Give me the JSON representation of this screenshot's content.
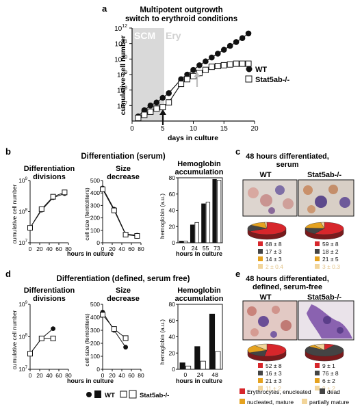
{
  "colors": {
    "black": "#111111",
    "open": "#ffffff",
    "shade": "#d9d9d9",
    "arrow_grey": "#bdbdbd",
    "pie_red": "#d7262b",
    "pie_dark": "#444444",
    "pie_orange": "#e5a21f",
    "pie_light": "#f2d59a"
  },
  "panel_a": {
    "letter": "a",
    "title1": "Multipotent outgrowth",
    "title2": "switch to erythroid conditions",
    "label_scm": "SCM",
    "label_ery": "Ery",
    "chart_data": {
      "type": "line",
      "xlabel": "days in culture",
      "ylabel": "cumulative cell number",
      "log_y": true,
      "xlim": [
        0,
        20
      ],
      "ylim": [
        6,
        12
      ],
      "xticks": [
        0,
        5,
        10,
        15,
        20
      ],
      "yticks": [
        7,
        8,
        9,
        10,
        11,
        12
      ],
      "series": [
        {
          "name": "WT",
          "marker": "filled",
          "x": [
            1,
            2,
            3,
            4,
            5,
            6,
            8,
            9,
            10,
            11,
            12,
            13,
            14,
            15,
            16,
            17,
            18,
            19
          ],
          "y": [
            6.3,
            6.7,
            7.0,
            7.2,
            7.5,
            7.8,
            8.7,
            9.0,
            9.3,
            9.6,
            9.85,
            10.1,
            10.35,
            10.6,
            10.85,
            11.1,
            11.35,
            11.65
          ]
        },
        {
          "name": "Stat5ab-/-",
          "marker": "open",
          "x": [
            1,
            2,
            3,
            4,
            5,
            6,
            8,
            9,
            10,
            11,
            12,
            13,
            14,
            15,
            16,
            17,
            18,
            19
          ],
          "y": [
            6.2,
            6.4,
            6.6,
            6.8,
            6.9,
            7.2,
            8.4,
            8.7,
            8.9,
            9.1,
            9.3,
            9.5,
            9.55,
            9.6,
            9.65,
            9.7,
            9.7,
            9.7
          ]
        }
      ]
    }
  },
  "panel_b": {
    "letter": "b",
    "title": "Differentiation (serum)",
    "xlabel_shared": "hours in culture",
    "c1": {
      "title1": "Differentiation",
      "title2": "divisions",
      "chart_data": {
        "type": "line",
        "ylabel": "cumulative cell number",
        "log_y": true,
        "xlim": [
          0,
          80
        ],
        "ylim": [
          7,
          9
        ],
        "xticks": [
          0,
          20,
          40,
          60,
          80
        ],
        "yticks": [
          7,
          8,
          9
        ],
        "series": [
          {
            "name": "WT",
            "x": [
              0,
              24,
              48,
              72
            ],
            "y": [
              7.48,
              8.05,
              8.45,
              8.58
            ]
          },
          {
            "name": "Stat5ab-/-",
            "x": [
              0,
              24,
              48,
              72
            ],
            "y": [
              7.48,
              8.08,
              8.48,
              8.62
            ]
          }
        ]
      }
    },
    "c2": {
      "title1": "Size",
      "title2": "decrease",
      "chart_data": {
        "type": "line",
        "ylabel": "cell size (femtoliters)",
        "xlim": [
          0,
          80
        ],
        "ylim": [
          0,
          500
        ],
        "xticks": [
          0,
          20,
          40,
          60,
          80
        ],
        "yticks": [
          0,
          100,
          200,
          300,
          400,
          500
        ],
        "series": [
          {
            "name": "WT",
            "x": [
              0,
              24,
              48,
              72
            ],
            "y": [
              440,
              270,
              70,
              60
            ]
          },
          {
            "name": "Stat5ab-/-",
            "x": [
              0,
              24,
              48,
              72
            ],
            "y": [
              430,
              260,
              65,
              55
            ]
          }
        ]
      }
    },
    "c3": {
      "title1": "Hemoglobin",
      "title2": "accumulation",
      "chart_data": {
        "type": "bar",
        "ylabel": "hemoglobin (a.u.)",
        "xlabel": "hours in culture",
        "categories": [
          "0",
          "24",
          "55",
          "73"
        ],
        "ylim": [
          0,
          80
        ],
        "yticks": [
          0,
          20,
          40,
          60,
          80
        ],
        "series": [
          {
            "name": "WT",
            "values": [
              2,
              22,
              48,
              78
            ]
          },
          {
            "name": "Stat5ab-/-",
            "values": [
              2,
              25,
              50,
              77
            ]
          }
        ]
      }
    }
  },
  "panel_c": {
    "letter": "c",
    "title1": "48 hours differentiated,",
    "title2": "serum",
    "wt": {
      "label": "WT",
      "values": [
        "68 ± 8",
        "17 ± 3",
        "14 ± 3",
        "2 ± 0.4"
      ],
      "fractions": [
        68,
        17,
        14,
        2
      ]
    },
    "ko": {
      "label": "Stat5ab-/-",
      "values": [
        "59 ± 8",
        "18 ± 2",
        "21 ± 5",
        "3 ± 0.3"
      ],
      "fractions": [
        59,
        18,
        21,
        3
      ]
    }
  },
  "panel_d": {
    "letter": "d",
    "title": "Differentiation (defined, serum free)",
    "xlabel_shared": "hours in culture",
    "c1": {
      "title1": "Differentiation",
      "title2": "divisions",
      "chart_data": {
        "type": "line",
        "ylabel": "cumulative cell number",
        "log_y": true,
        "xlim": [
          0,
          80
        ],
        "ylim": [
          7,
          9
        ],
        "xticks": [
          0,
          20,
          40,
          60,
          80
        ],
        "yticks": [
          7,
          8,
          9
        ],
        "series": [
          {
            "name": "WT",
            "x": [
              0,
              24,
              48
            ],
            "y": [
              7.48,
              7.95,
              8.25
            ]
          },
          {
            "name": "Stat5ab-/-",
            "x": [
              0,
              24,
              48
            ],
            "y": [
              7.48,
              7.95,
              7.95
            ]
          }
        ]
      }
    },
    "c2": {
      "title1": "Size",
      "title2": "decrease",
      "chart_data": {
        "type": "line",
        "ylabel": "cell size (femtoliters)",
        "xlim": [
          0,
          80
        ],
        "ylim": [
          0,
          500
        ],
        "xticks": [
          0,
          20,
          40,
          60,
          80
        ],
        "yticks": [
          0,
          100,
          200,
          300,
          400,
          500
        ],
        "series": [
          {
            "name": "WT",
            "x": [
              0,
              24,
              48
            ],
            "y": [
              440,
              300,
              170
            ]
          },
          {
            "name": "Stat5ab-/-",
            "x": [
              0,
              24,
              48
            ],
            "y": [
              420,
              310,
              240
            ]
          }
        ]
      }
    },
    "c3": {
      "title1": "Hemoglobin",
      "title2": "accumulation",
      "chart_data": {
        "type": "bar",
        "ylabel": "hemoglobin (a.u.)",
        "xlabel": "hours in culture",
        "categories": [
          "0",
          "24",
          "48"
        ],
        "ylim": [
          0,
          80
        ],
        "yticks": [
          0,
          20,
          40,
          60,
          80
        ],
        "series": [
          {
            "name": "WT",
            "values": [
              8,
              28,
              68
            ]
          },
          {
            "name": "Stat5ab-/-",
            "values": [
              4,
              10,
              22
            ]
          }
        ]
      }
    }
  },
  "panel_e": {
    "letter": "e",
    "title1": "48 hours differentiated,",
    "title2": "defined, serum-free",
    "wt": {
      "label": "WT",
      "values": [
        "52 ± 8",
        "16 ± 3",
        "21 ± 3",
        "11 ± 2"
      ],
      "fractions": [
        52,
        16,
        21,
        11
      ]
    },
    "ko": {
      "label": "Stat5ab-/-",
      "values": [
        "9 ± 1",
        "76 ± 8",
        "6 ± 2",
        "9 ± 2"
      ],
      "fractions": [
        9,
        76,
        6,
        9
      ]
    }
  },
  "legend_d": {
    "wt": "WT",
    "ko": "Stat5ab-/-"
  },
  "legend_e": {
    "ery": "Erythrocytes, enucleated",
    "dead": "dead",
    "nuc": "nucleated, mature",
    "partial": "partially mature"
  }
}
